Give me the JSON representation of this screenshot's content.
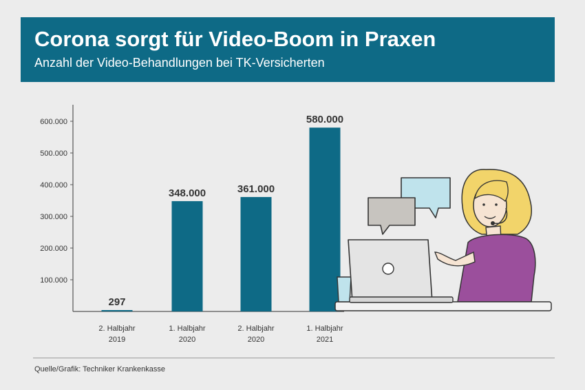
{
  "header": {
    "title": "Corona sorgt für Video-Boom in Praxen",
    "subtitle": "Anzahl der Video-Behandlungen bei TK-Versicherten"
  },
  "source": "Quelle/Grafik: Techniker Krankenkasse",
  "colors": {
    "banner": "#0e6a86",
    "bar": "#0e6a86",
    "shirt": "#9b4f9c",
    "hair": "#f2d46a",
    "bubble_gray": "#c7c4bf",
    "bubble_blue": "#bfe3ec",
    "laptop": "#e4e4e4"
  },
  "illustration": {
    "icons": [
      "woman-icon",
      "laptop-icon",
      "speech-bubble-icon",
      "glass-icon"
    ]
  },
  "chart_data": {
    "type": "bar",
    "categories": [
      [
        "2. Halbjahr",
        "2019"
      ],
      [
        "1. Halbjahr",
        "2020"
      ],
      [
        "2. Halbjahr",
        "2020"
      ],
      [
        "1. Halbjahr",
        "2021"
      ]
    ],
    "values": [
      297,
      348000,
      361000,
      580000
    ],
    "value_labels": [
      "297",
      "348.000",
      "361.000",
      "580.000"
    ],
    "yticks": [
      100000,
      200000,
      300000,
      400000,
      500000,
      600000
    ],
    "ytick_labels": [
      "100.000",
      "200.000",
      "300.000",
      "400.000",
      "500.000",
      "600.000"
    ],
    "ylim": [
      0,
      650000
    ],
    "grid": false,
    "legend": "none"
  }
}
